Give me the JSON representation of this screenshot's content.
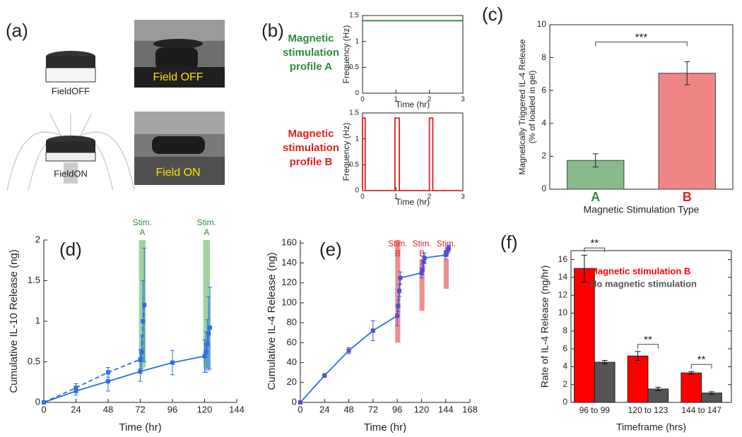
{
  "panel_a": {
    "label": "(a)",
    "icon_labels": [
      "FieldOFF",
      "FieldON"
    ],
    "photo_labels": [
      "Field OFF",
      "Field ON"
    ]
  },
  "chart_data": [
    {
      "type": "line",
      "panel_label": "(b)",
      "title": [
        "Magnetic",
        "stimulation",
        "profile A"
      ],
      "title_color": "#2e8b3a",
      "xlabel": "Time (hr)",
      "ylabel": "Frequency (Hz)",
      "xlim": [
        0,
        3
      ],
      "ylim": [
        0,
        1.5
      ],
      "xticks": [
        0,
        1,
        2,
        3
      ],
      "yticks": [
        0,
        0.5,
        1,
        1.5
      ],
      "series": [
        {
          "color": "#2e8b3a",
          "x": [
            0,
            3
          ],
          "values": [
            1.4,
            1.4
          ]
        }
      ]
    },
    {
      "type": "line",
      "title": [
        "Magnetic",
        "stimulation",
        "profile B"
      ],
      "title_color": "#e02020",
      "xlabel": "Time (hr)",
      "ylabel": "Frequency (Hz)",
      "xlim": [
        0,
        3
      ],
      "ylim": [
        0,
        1.5
      ],
      "xticks": [
        0,
        1,
        2,
        3
      ],
      "yticks": [
        0,
        0.5,
        1,
        1.5
      ],
      "series": [
        {
          "color": "#e02020",
          "x": [
            0,
            0,
            0.08,
            0.08,
            0.97,
            0.97,
            1.1,
            1.1,
            2.0,
            2.0,
            2.1,
            2.1,
            3
          ],
          "values": [
            0,
            1.4,
            1.4,
            0,
            0,
            1.4,
            1.4,
            0,
            0,
            1.4,
            1.4,
            0,
            0
          ]
        }
      ]
    },
    {
      "type": "bar",
      "panel_label": "(c)",
      "ylabel": [
        "Magnetically Triggered IL-4 Release",
        "(% of loaded in gel)"
      ],
      "xlabel": "Magnetic Stimulation Type",
      "categories": [
        "A",
        "B"
      ],
      "values": [
        1.75,
        7.05
      ],
      "errors": [
        0.4,
        0.7
      ],
      "colors": [
        "#88ba8b",
        "#f08585"
      ],
      "label_colors": [
        "#2e8b3a",
        "#e02020"
      ],
      "ylim": [
        0,
        10
      ],
      "yticks": [
        0,
        2,
        4,
        6,
        8,
        10
      ],
      "annotations": [
        "***"
      ]
    },
    {
      "type": "line",
      "panel_label": "(d)",
      "xlabel": "Time (hr)",
      "ylabel": "Cumulative IL-10 Release (ng)",
      "xlim": [
        0,
        144
      ],
      "ylim": [
        0,
        2
      ],
      "xticks": [
        0,
        24,
        48,
        72,
        96,
        120,
        144
      ],
      "yticks": [
        0,
        0.5,
        1,
        1.5,
        2
      ],
      "bands": [
        {
          "label": "Stim.",
          "sublabel": "A",
          "x0": 71,
          "x1": 76,
          "y0": 0.43,
          "y1": 2,
          "color": "#7fc47f"
        },
        {
          "label": "Stim.",
          "sublabel": "A",
          "x0": 119,
          "x1": 124,
          "y0": 0.43,
          "y1": 2,
          "color": "#7fc47f"
        }
      ],
      "series": [
        {
          "color": "#2b6fe0",
          "marker": "square",
          "x": [
            0,
            24,
            48,
            72,
            96,
            120,
            121,
            122,
            123,
            124
          ],
          "values": [
            0,
            0.14,
            0.26,
            0.38,
            0.49,
            0.57,
            0.62,
            0.72,
            0.85,
            0.92
          ],
          "errors": [
            0,
            0.05,
            0.12,
            0.12,
            0.15,
            0.2,
            0.25,
            0.3,
            0.45,
            0.5
          ]
        },
        {
          "color": "#2b6fe0",
          "marker": "square",
          "dashed": true,
          "x": [
            0,
            24,
            48,
            72,
            73,
            74,
            75
          ],
          "values": [
            0,
            0.18,
            0.37,
            0.53,
            0.62,
            1.0,
            1.2
          ],
          "errors": [
            0,
            0.05,
            0.06,
            0.12,
            0.2,
            0.5,
            0.7
          ]
        }
      ]
    },
    {
      "type": "line",
      "panel_label": "(e)",
      "xlabel": "Time (hr)",
      "ylabel": "Cumulative IL-4 Release (ng)",
      "xlim": [
        0,
        168
      ],
      "ylim": [
        0,
        163
      ],
      "xticks": [
        0,
        24,
        48,
        72,
        96,
        120,
        144,
        168
      ],
      "yticks": [
        0,
        20,
        40,
        60,
        80,
        100,
        120,
        140,
        160
      ],
      "bands": [
        {
          "label": "Stim.",
          "sublabel": "B",
          "x0": 94,
          "x1": 99,
          "y0": 60,
          "y1": 163,
          "color": "#e86a6a"
        },
        {
          "label": "Stim.",
          "sublabel": "B",
          "x0": 118,
          "x1": 123,
          "y0": 92,
          "y1": 144,
          "color": "#e86a6a"
        },
        {
          "label": "Stim.",
          "sublabel": "B",
          "x0": 142,
          "x1": 147,
          "y0": 114,
          "y1": 144,
          "color": "#e86a6a"
        }
      ],
      "series": [
        {
          "color": "#2b6fe0",
          "marker": "square",
          "marker_color": "#5050c8",
          "x": [
            0,
            24,
            48,
            72,
            96,
            97,
            98,
            99,
            120,
            121,
            122,
            123,
            144,
            145,
            146,
            147
          ],
          "values": [
            0,
            27,
            52,
            72,
            87,
            97,
            112,
            125,
            130,
            133,
            141,
            145,
            148,
            151,
            153,
            155
          ],
          "errors": [
            0,
            2,
            3,
            10,
            10,
            6,
            6,
            6,
            5,
            5,
            5,
            5,
            4,
            4,
            3,
            3
          ]
        }
      ]
    },
    {
      "type": "grouped_bar",
      "panel_label": "(f)",
      "xlabel": "Timeframe (hrs)",
      "ylabel": "Rate of IL-4 Release (ng/hr)",
      "categories": [
        "96 to 99",
        "120 to 123",
        "144 to 147"
      ],
      "ylim": [
        0,
        17
      ],
      "yticks": [
        0,
        2,
        4,
        6,
        8,
        10,
        12,
        14,
        16
      ],
      "annotations": [
        "**",
        "**",
        "**"
      ],
      "series": [
        {
          "name": "Magnetic stimulation B",
          "color": "#ff0000",
          "values": [
            15,
            5.2,
            3.3
          ],
          "errors": [
            1.5,
            0.5,
            0.15
          ]
        },
        {
          "name": "No magnetic stimulation",
          "color": "#555555",
          "values": [
            4.5,
            1.5,
            1.05
          ],
          "errors": [
            0.2,
            0.2,
            0.15
          ]
        }
      ]
    }
  ]
}
